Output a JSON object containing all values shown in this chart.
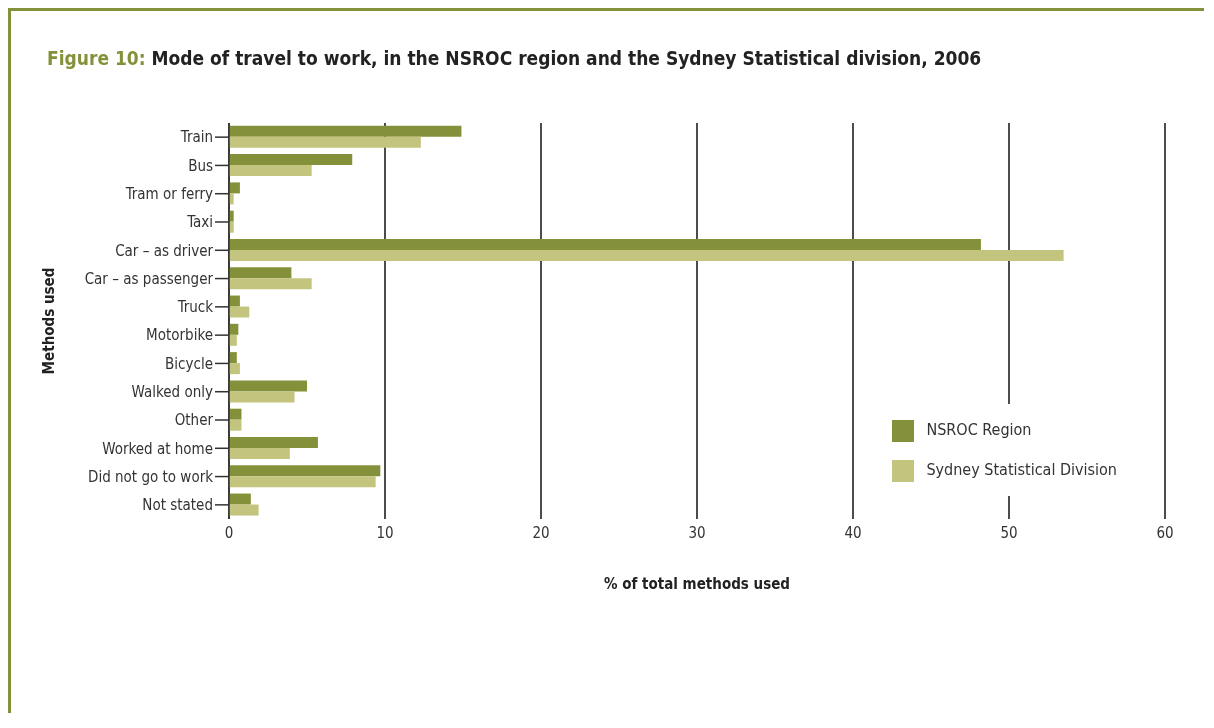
{
  "chart_data": {
    "type": "bar",
    "orientation": "horizontal",
    "title": "Figure 10: Mode of travel to work, in the NSROC region and the Sydney Statistical division, 2006",
    "xlabel": "% of total methods used",
    "ylabel": "Methods used",
    "categories": [
      "Train",
      "Bus",
      "Tram or ferry",
      "Taxi",
      "Car – as driver",
      "Car – as passenger",
      "Truck",
      "Motorbike",
      "Bicycle",
      "Walked only",
      "Other",
      "Worked at home",
      "Did not go to work",
      "Not stated"
    ],
    "series": [
      {
        "name": "NSROC Region",
        "color": "#85913a",
        "values": [
          14.9,
          7.9,
          0.7,
          0.3,
          48.2,
          4.0,
          0.7,
          0.6,
          0.5,
          5.0,
          0.8,
          5.7,
          9.7,
          1.4
        ]
      },
      {
        "name": "Sydney Statistical Division",
        "color": "#c3c47e",
        "values": [
          12.3,
          5.3,
          0.3,
          0.3,
          53.5,
          5.3,
          1.3,
          0.5,
          0.7,
          4.2,
          0.8,
          3.9,
          9.4,
          1.9
        ]
      }
    ],
    "xlim": [
      0,
      60
    ],
    "xticks": [
      0,
      10,
      20,
      30,
      40,
      50,
      60
    ],
    "grid": "x",
    "legend": "bottom right"
  }
}
